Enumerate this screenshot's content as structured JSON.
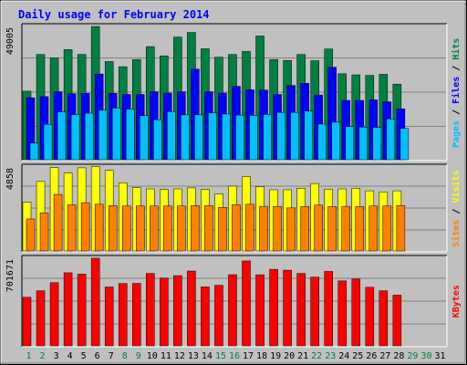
{
  "chart_data": {
    "type": "bar",
    "title": "Daily usage for February 2014",
    "days": [
      "1",
      "2",
      "3",
      "4",
      "5",
      "6",
      "7",
      "8",
      "9",
      "10",
      "11",
      "12",
      "13",
      "14",
      "15",
      "16",
      "17",
      "18",
      "19",
      "20",
      "21",
      "22",
      "23",
      "24",
      "25",
      "26",
      "27",
      "28",
      "29",
      "30",
      "31"
    ],
    "weekend_days": [
      "1",
      "2",
      "8",
      "9",
      "15",
      "16",
      "22",
      "23",
      "29",
      "30"
    ],
    "panels": [
      {
        "id": "top",
        "ymax": 49005,
        "ymax_label": "49005",
        "right_labels": [
          {
            "text": "Pages",
            "color": "#00c0ff"
          },
          {
            "text": "Files",
            "color": "#0000ff"
          },
          {
            "text": "Hits",
            "color": "#008040"
          }
        ],
        "series": [
          {
            "name": "Hits",
            "color": "#008040",
            "values": [
              25200,
              38700,
              37400,
              40500,
              38700,
              49000,
              36100,
              34200,
              36800,
              41600,
              38200,
              45100,
              46800,
              40800,
              37700,
              38700,
              39800,
              45500,
              36800,
              36500,
              38700,
              36400,
              40700,
              31600,
              31200,
              31000,
              31400,
              27800
            ]
          },
          {
            "name": "Files",
            "color": "#0000ff",
            "values": [
              22800,
              23200,
              25000,
              24300,
              24400,
              31500,
              24400,
              24000,
              24000,
              25000,
              24500,
              25000,
              33300,
              25000,
              24500,
              27000,
              25700,
              25600,
              24000,
              27300,
              28100,
              23800,
              34000,
              21800,
              21800,
              22000,
              21300,
              18700
            ]
          },
          {
            "name": "Pages",
            "color": "#00c0ff",
            "values": [
              6100,
              13000,
              17600,
              16600,
              17100,
              18200,
              19000,
              18600,
              16200,
              14700,
              17700,
              16500,
              16500,
              17200,
              16800,
              16400,
              16300,
              16700,
              17400,
              17400,
              17900,
              13100,
              13800,
              12200,
              12000,
              11900,
              15000,
              11500
            ]
          }
        ]
      },
      {
        "id": "middle",
        "ymax": 4858,
        "ymax_label": "4858",
        "right_labels": [
          {
            "text": "Sites",
            "color": "#ff8000"
          },
          {
            "text": "Visits",
            "color": "#ffff00"
          }
        ],
        "series": [
          {
            "name": "Visits",
            "color": "#ffff00",
            "values": [
              2820,
              4020,
              4820,
              4510,
              4810,
              4880,
              4660,
              3940,
              3660,
              3590,
              3560,
              3590,
              3650,
              3560,
              3290,
              3750,
              4300,
              3720,
              3540,
              3540,
              3630,
              3900,
              3570,
              3590,
              3630,
              3480,
              3420,
              3480
            ]
          },
          {
            "name": "Sites",
            "color": "#ff8000",
            "values": [
              1850,
              2200,
              3270,
              2670,
              2790,
              2700,
              2620,
              2600,
              2600,
              2600,
              2600,
              2600,
              2620,
              2620,
              2520,
              2670,
              2700,
              2580,
              2570,
              2490,
              2570,
              2650,
              2570,
              2580,
              2570,
              2600,
              2600,
              2630
            ]
          }
        ]
      },
      {
        "id": "bottom",
        "ymax": 701671,
        "ymax_label": "701671",
        "right_labels": [
          {
            "text": "KBytes",
            "color": "#ff0000"
          }
        ],
        "series": [
          {
            "name": "KBytes",
            "color": "#ff0000",
            "values": [
              389000,
              441000,
              506000,
              585000,
              574000,
              701671,
              471000,
              499000,
              500000,
              580000,
              543000,
              562000,
              599000,
              472000,
              485000,
              570000,
              680000,
              569000,
              613000,
              606000,
              580000,
              550000,
              596000,
              520000,
              535000,
              469000,
              441000,
              406000
            ]
          }
        ]
      }
    ]
  }
}
